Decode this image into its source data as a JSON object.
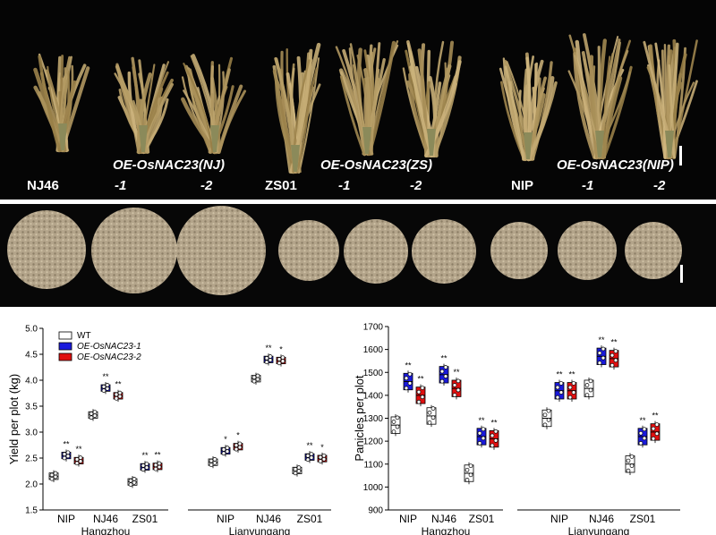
{
  "photo_top": {
    "labels": {
      "nj46": "NJ46",
      "oe_nj": "OE-OsNAC23(NJ)",
      "nj_1": "-1",
      "nj_2": "-2",
      "zs01": "ZS01",
      "oe_zs": "OE-OsNAC23(ZS)",
      "zs_1": "-1",
      "zs_2": "-2",
      "nip": "NIP",
      "oe_nip": "OE-OsNAC23(NIP)",
      "nip_1": "-1",
      "nip_2": "-2"
    }
  },
  "colors": {
    "wt": "#ffffff",
    "line1": "#1a1adc",
    "line2": "#e01010",
    "grain": "#b3a48a"
  },
  "legend": {
    "wt": "WT",
    "line1": "OE-OsNAC23-1",
    "line2": "OE-OsNAC23-2"
  },
  "chart_data": [
    {
      "type": "box",
      "ylabel": "Yield per plot (kg)",
      "ylim": [
        1.5,
        5.0
      ],
      "yticks": [
        "1.5",
        "2.0",
        "2.5",
        "3.0",
        "3.5",
        "4.0",
        "4.5",
        "5.0"
      ],
      "locations": [
        "Hangzhou",
        "Lianyungang"
      ],
      "categories": [
        "NIP",
        "NJ46",
        "ZS01"
      ],
      "series": [
        {
          "name": "WT",
          "values": [
            [
              2.15,
              3.33,
              2.04
            ],
            [
              2.42,
              4.03,
              2.26
            ]
          ]
        },
        {
          "name": "OE-OsNAC23-1",
          "values": [
            [
              2.55,
              3.85,
              2.33
            ],
            [
              2.64,
              4.4,
              2.52
            ]
          ]
        },
        {
          "name": "OE-OsNAC23-2",
          "values": [
            [
              2.45,
              3.7,
              2.34
            ],
            [
              2.72,
              4.38,
              2.49
            ]
          ]
        }
      ],
      "significance": [
        [
          [
            "",
            "**",
            "**"
          ],
          [
            "",
            "**",
            "**"
          ],
          [
            "",
            "**",
            "**"
          ]
        ],
        [
          [
            "",
            "*",
            "*"
          ],
          [
            "",
            "**",
            "*"
          ],
          [
            "",
            "**",
            "*"
          ]
        ]
      ]
    },
    {
      "type": "box",
      "ylabel": "Panicles per plot",
      "ylim": [
        900,
        1700
      ],
      "yticks": [
        "900",
        "1000",
        "1100",
        "1200",
        "1300",
        "1400",
        "1500",
        "1600",
        "1700"
      ],
      "locations": [
        "Hangzhou",
        "Lianyungang"
      ],
      "categories": [
        "NIP",
        "NJ46",
        "ZS01"
      ],
      "series": [
        {
          "name": "WT",
          "values": [
            [
              1270,
              1310,
              1060
            ],
            [
              1300,
              1430,
              1100
            ]
          ]
        },
        {
          "name": "OE-OsNAC23-1",
          "values": [
            [
              1460,
              1490,
              1220
            ],
            [
              1420,
              1570,
              1220
            ]
          ]
        },
        {
          "name": "OE-OsNAC23-2",
          "values": [
            [
              1400,
              1430,
              1210
            ],
            [
              1420,
              1560,
              1240
            ]
          ]
        }
      ],
      "significance": [
        [
          [
            "",
            "**",
            "**"
          ],
          [
            "",
            "**",
            "**"
          ],
          [
            "",
            "**",
            "**"
          ]
        ],
        [
          [
            "",
            "**",
            "**"
          ],
          [
            "",
            "**",
            "**"
          ],
          [
            "",
            "**",
            "**"
          ]
        ]
      ]
    }
  ]
}
